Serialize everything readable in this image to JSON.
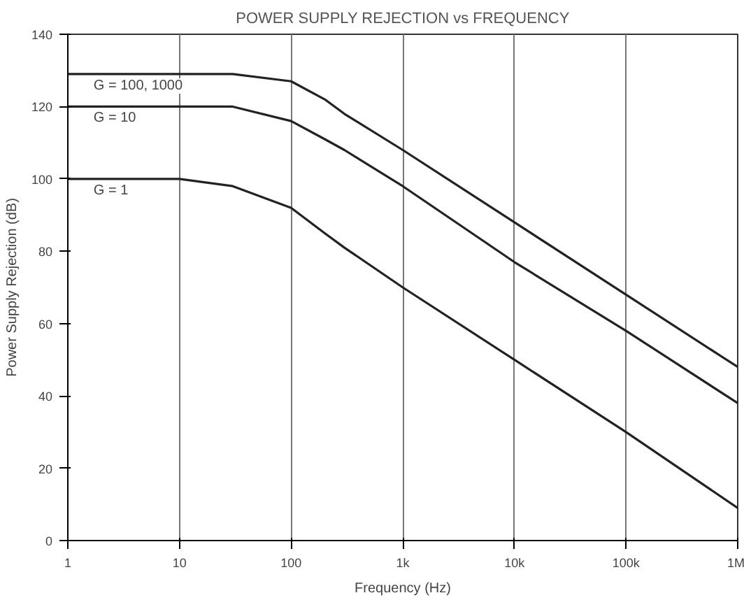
{
  "chart_data": {
    "type": "line",
    "title": "POWER SUPPLY REJECTION vs FREQUENCY",
    "xlabel": "Frequency (Hz)",
    "ylabel": "Power Supply Rejection (dB)",
    "log": "x",
    "xlim": [
      1,
      1000000
    ],
    "ylim": [
      0,
      140
    ],
    "xticks": [
      1,
      10,
      100,
      {
        "value": 1000,
        "label": "1k"
      },
      {
        "value": 10000,
        "label": "10k"
      },
      {
        "value": 100000,
        "label": "100k"
      },
      {
        "value": 1000000,
        "label": "1M"
      }
    ],
    "yticks": [
      0,
      20,
      40,
      60,
      80,
      100,
      120,
      140
    ],
    "grid": "x",
    "legend": false,
    "marker": "none",
    "line_style": "solid",
    "x": [
      1,
      10,
      30,
      100,
      200,
      300,
      1000,
      10000,
      100000,
      1000000
    ],
    "series": [
      {
        "name": "G = 100, 1000",
        "color": "#222222",
        "values": [
          129,
          129,
          129,
          127,
          122,
          118,
          108,
          88,
          68,
          48
        ]
      },
      {
        "name": "G = 10",
        "color": "#222222",
        "values": [
          120,
          120,
          120,
          116,
          111,
          108,
          98,
          77,
          58,
          38
        ]
      },
      {
        "name": "G = 1",
        "color": "#222222",
        "values": [
          100,
          100,
          98,
          92,
          85,
          81,
          70,
          50,
          30,
          9
        ]
      }
    ]
  }
}
